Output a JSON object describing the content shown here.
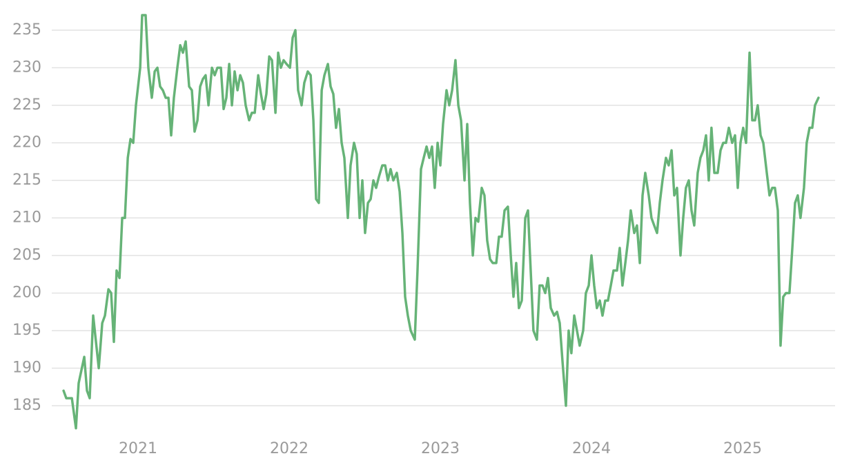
{
  "chart_data": {
    "type": "line",
    "x": [
      2020.507,
      2020.525,
      2020.562,
      2020.589,
      2020.607,
      2020.644,
      2020.662,
      2020.68,
      2020.703,
      2020.74,
      2020.763,
      2020.781,
      2020.804,
      2020.822,
      2020.84,
      2020.858,
      2020.877,
      2020.895,
      2020.913,
      2020.932,
      2020.95,
      2020.968,
      2020.986,
      2021.014,
      2021.027,
      2021.05,
      2021.068,
      2021.091,
      2021.11,
      2021.128,
      2021.146,
      2021.164,
      2021.183,
      2021.201,
      2021.219,
      2021.237,
      2021.26,
      2021.279,
      2021.297,
      2021.315,
      2021.338,
      2021.356,
      2021.374,
      2021.393,
      2021.411,
      2021.429,
      2021.447,
      2021.466,
      2021.489,
      2021.507,
      2021.525,
      2021.548,
      2021.566,
      2021.584,
      2021.603,
      2021.621,
      2021.639,
      2021.658,
      2021.676,
      2021.694,
      2021.712,
      2021.735,
      2021.753,
      2021.772,
      2021.795,
      2021.813,
      2021.831,
      2021.849,
      2021.868,
      2021.886,
      2021.909,
      2021.927,
      2021.945,
      2021.963,
      2021.982,
      2022.005,
      2022.023,
      2022.041,
      2022.059,
      2022.082,
      2022.1,
      2022.123,
      2022.142,
      2022.16,
      2022.178,
      2022.196,
      2022.215,
      2022.233,
      2022.256,
      2022.274,
      2022.292,
      2022.31,
      2022.329,
      2022.347,
      2022.365,
      2022.388,
      2022.406,
      2022.429,
      2022.447,
      2022.466,
      2022.484,
      2022.502,
      2022.521,
      2022.539,
      2022.557,
      2022.575,
      2022.594,
      2022.616,
      2022.635,
      2022.653,
      2022.671,
      2022.689,
      2022.712,
      2022.731,
      2022.749,
      2022.767,
      2022.785,
      2022.804,
      2022.831,
      2022.849,
      2022.872,
      2022.89,
      2022.909,
      2022.927,
      2022.945,
      2022.963,
      2022.982,
      2023.0,
      2023.018,
      2023.041,
      2023.059,
      2023.078,
      2023.1,
      2023.119,
      2023.137,
      2023.16,
      2023.178,
      2023.196,
      2023.215,
      2023.233,
      2023.251,
      2023.274,
      2023.292,
      2023.31,
      2023.329,
      2023.347,
      2023.37,
      2023.388,
      2023.406,
      2023.425,
      2023.447,
      2023.466,
      2023.484,
      2023.502,
      2023.52,
      2023.539,
      2023.562,
      2023.58,
      2023.598,
      2023.616,
      2023.639,
      2023.657,
      2023.676,
      2023.694,
      2023.712,
      2023.731,
      2023.753,
      2023.772,
      2023.79,
      2023.808,
      2023.831,
      2023.849,
      2023.867,
      2023.886,
      2023.904,
      2023.922,
      2023.945,
      2023.963,
      2023.982,
      2024.0,
      2024.018,
      2024.036,
      2024.055,
      2024.073,
      2024.091,
      2024.109,
      2024.128,
      2024.146,
      2024.169,
      2024.187,
      2024.205,
      2024.224,
      2024.242,
      2024.26,
      2024.283,
      2024.301,
      2024.32,
      2024.338,
      2024.356,
      2024.379,
      2024.397,
      2024.415,
      2024.434,
      2024.452,
      2024.47,
      2024.493,
      2024.511,
      2024.53,
      2024.548,
      2024.566,
      2024.589,
      2024.607,
      2024.625,
      2024.644,
      2024.662,
      2024.68,
      2024.703,
      2024.721,
      2024.74,
      2024.758,
      2024.776,
      2024.794,
      2024.813,
      2024.835,
      2024.854,
      2024.872,
      2024.89,
      2024.909,
      2024.931,
      2024.95,
      2024.968,
      2024.986,
      2025.004,
      2025.023,
      2025.046,
      2025.064,
      2025.082,
      2025.1,
      2025.119,
      2025.137,
      2025.16,
      2025.178,
      2025.196,
      2025.214,
      2025.233,
      2025.251,
      2025.269,
      2025.287,
      2025.31,
      2025.329,
      2025.347,
      2025.365,
      2025.383,
      2025.406,
      2025.424,
      2025.443,
      2025.461,
      2025.479,
      2025.502
    ],
    "series": [
      {
        "color": "#66b377",
        "values": [
          187,
          186,
          186,
          182,
          188,
          191.5,
          187,
          186,
          197,
          190,
          196,
          197,
          200.5,
          200,
          193.5,
          203,
          202,
          210,
          210,
          218,
          220.5,
          220,
          225,
          230,
          237,
          237,
          230,
          226,
          229.5,
          230,
          227.5,
          227,
          226,
          226,
          221,
          226,
          230,
          233,
          232,
          233.5,
          227.5,
          227,
          221.5,
          223,
          227.5,
          228.5,
          229,
          225,
          230,
          229,
          230,
          230,
          224.5,
          226,
          230.5,
          225,
          229.5,
          227,
          229,
          228,
          225,
          223,
          224,
          224,
          229,
          226.5,
          224.5,
          226.5,
          231.5,
          231,
          224,
          232,
          230,
          231,
          230.5,
          230,
          234,
          235,
          227,
          225,
          228,
          229.5,
          229,
          223,
          212.5,
          212,
          227,
          229,
          230.5,
          227.5,
          226.5,
          222,
          224.5,
          220,
          218,
          210,
          217,
          220,
          218.5,
          210,
          215,
          208,
          212,
          212.5,
          215,
          214,
          215.5,
          217,
          217,
          215,
          216.5,
          215,
          216,
          213.5,
          208,
          199.5,
          197,
          195,
          193.8,
          203,
          216.5,
          218,
          219.5,
          218,
          219.5,
          214,
          220,
          217,
          222.5,
          227,
          225,
          227,
          231,
          225,
          223,
          215,
          222.5,
          212,
          205,
          210,
          209.5,
          214,
          213,
          207,
          204.5,
          204,
          204,
          207.5,
          207.5,
          211,
          211.5,
          205,
          199.5,
          204,
          198,
          199,
          210,
          211,
          203,
          195,
          193.8,
          201,
          201,
          200,
          202,
          198,
          197,
          197.5,
          196,
          191,
          185,
          195,
          192,
          197,
          195,
          193,
          195,
          200,
          201,
          205,
          201,
          198,
          199,
          197,
          199,
          199,
          201,
          203,
          203,
          206,
          201,
          204,
          207,
          211,
          208,
          209,
          204,
          213,
          216,
          213,
          210,
          209,
          208,
          212,
          215,
          218,
          217,
          219,
          213,
          214,
          205,
          210,
          214,
          215,
          211,
          209,
          216,
          218,
          219,
          221,
          215,
          222,
          216,
          216,
          219,
          220,
          220,
          222,
          220,
          221,
          214,
          220,
          222,
          220,
          232,
          223,
          223,
          225,
          221,
          220,
          216,
          213,
          214,
          214,
          211,
          193,
          199.5,
          200,
          200,
          206,
          212,
          213,
          210,
          214,
          220,
          222,
          222,
          225,
          226
        ]
      }
    ],
    "xlim": [
      2020.429,
      2025.612
    ],
    "xticks": [
      2021,
      2022,
      2023,
      2024,
      2025
    ],
    "ylim": [
      181.7,
      238.1
    ],
    "yticks": [
      185,
      190,
      195,
      200,
      205,
      210,
      215,
      220,
      225,
      230,
      235
    ],
    "grid": true
  }
}
